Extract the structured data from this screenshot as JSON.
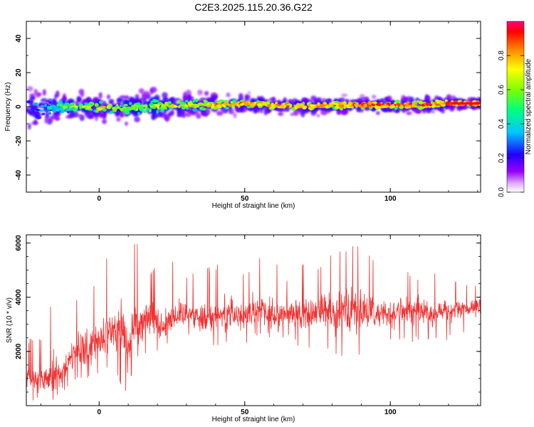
{
  "chart_data": [
    {
      "type": "heatmap",
      "title": "C2E3.2025.115.20.36.G22",
      "xlabel": "Height of straight line (km)",
      "ylabel": "Frequency (Hz)",
      "xlim": [
        -25,
        131
      ],
      "ylim": [
        -50,
        50
      ],
      "xticks": [
        "0",
        "50",
        "100"
      ],
      "xtick_values": [
        0,
        50,
        100
      ],
      "yticks": [
        "40",
        "20",
        "0",
        "-20",
        "-40"
      ],
      "ytick_values": [
        40,
        20,
        0,
        -20,
        -40
      ],
      "grid": false,
      "colorbar": {
        "label": "Normalized spectral amplitude",
        "range": [
          0,
          1
        ],
        "ticks": [
          "0.0",
          "0.2",
          "0.4",
          "0.6",
          "0.8"
        ],
        "tick_values": [
          0.0,
          0.2,
          0.4,
          0.6,
          0.8
        ],
        "colormap": "rainbow-magenta-to-red"
      },
      "ridge": {
        "x": [
          -25,
          -20,
          -15,
          -10,
          0,
          10,
          20,
          25,
          40,
          50,
          60,
          70,
          80,
          90,
          100,
          110,
          120,
          131
        ],
        "frequency_hz": [
          -1,
          -2,
          0,
          0,
          0,
          -1,
          0,
          1,
          1,
          2,
          1,
          0,
          1,
          1,
          1,
          1,
          2,
          2
        ],
        "peak_amplitude": [
          0.3,
          0.3,
          0.45,
          0.55,
          0.75,
          0.6,
          0.65,
          0.7,
          0.8,
          0.85,
          0.85,
          0.85,
          0.85,
          0.9,
          0.9,
          0.9,
          0.95,
          0.95
        ],
        "spread_hz": [
          10,
          12,
          9,
          8,
          7,
          8,
          10,
          7,
          6,
          5,
          5,
          5,
          5,
          5,
          5,
          5,
          4,
          3
        ]
      }
    },
    {
      "type": "line",
      "xlabel": "Height of straight line (km)",
      "ylabel": "SNR (10 * v/v)",
      "xlim": [
        -25,
        131
      ],
      "ylim": [
        0,
        6300
      ],
      "xticks": [
        "0",
        "50",
        "100"
      ],
      "xtick_values": [
        0,
        50,
        100
      ],
      "yticks": [
        "6000",
        "4000",
        "2000"
      ],
      "ytick_values": [
        6000,
        4000,
        2000
      ],
      "grid": false,
      "series": [
        {
          "color": "#ee3333",
          "x": [
            -25,
            -22,
            -19,
            -16,
            -13,
            -10,
            -7,
            -4,
            -1,
            2,
            5,
            8,
            10,
            12,
            15,
            18,
            21,
            25,
            30,
            35,
            40,
            45,
            50,
            55,
            60,
            65,
            70,
            75,
            80,
            85,
            90,
            95,
            100,
            105,
            110,
            115,
            120,
            125,
            131
          ],
          "mean": [
            1200,
            1000,
            900,
            1300,
            1100,
            1700,
            2100,
            2000,
            2300,
            2500,
            2800,
            2900,
            2000,
            3000,
            3200,
            3300,
            3000,
            3200,
            3500,
            3200,
            3300,
            3500,
            3200,
            3600,
            3200,
            3500,
            3300,
            3500,
            3400,
            3600,
            3500,
            3400,
            3400,
            3500,
            3500,
            3400,
            3500,
            3500,
            3600
          ],
          "max": [
            2500,
            2500,
            2600,
            4000,
            2800,
            3500,
            4200,
            4500,
            4500,
            5500,
            5900,
            5700,
            5300,
            6100,
            5800,
            5000,
            5700,
            5500,
            4800,
            5000,
            5200,
            5900,
            4800,
            5600,
            5400,
            4700,
            5300,
            5100,
            5700,
            5800,
            6100,
            5300,
            5100,
            5000,
            4800,
            4900,
            4700,
            4500,
            4500
          ],
          "min": [
            100,
            100,
            100,
            200,
            300,
            800,
            900,
            900,
            1100,
            1200,
            1400,
            500,
            300,
            1600,
            1800,
            2000,
            2000,
            2100,
            2500,
            2100,
            2200,
            2300,
            2100,
            2600,
            2200,
            2500,
            2000,
            2100,
            1900,
            1600,
            1800,
            2000,
            2300,
            2300,
            2400,
            2400,
            2400,
            2600,
            2800
          ]
        }
      ]
    }
  ]
}
